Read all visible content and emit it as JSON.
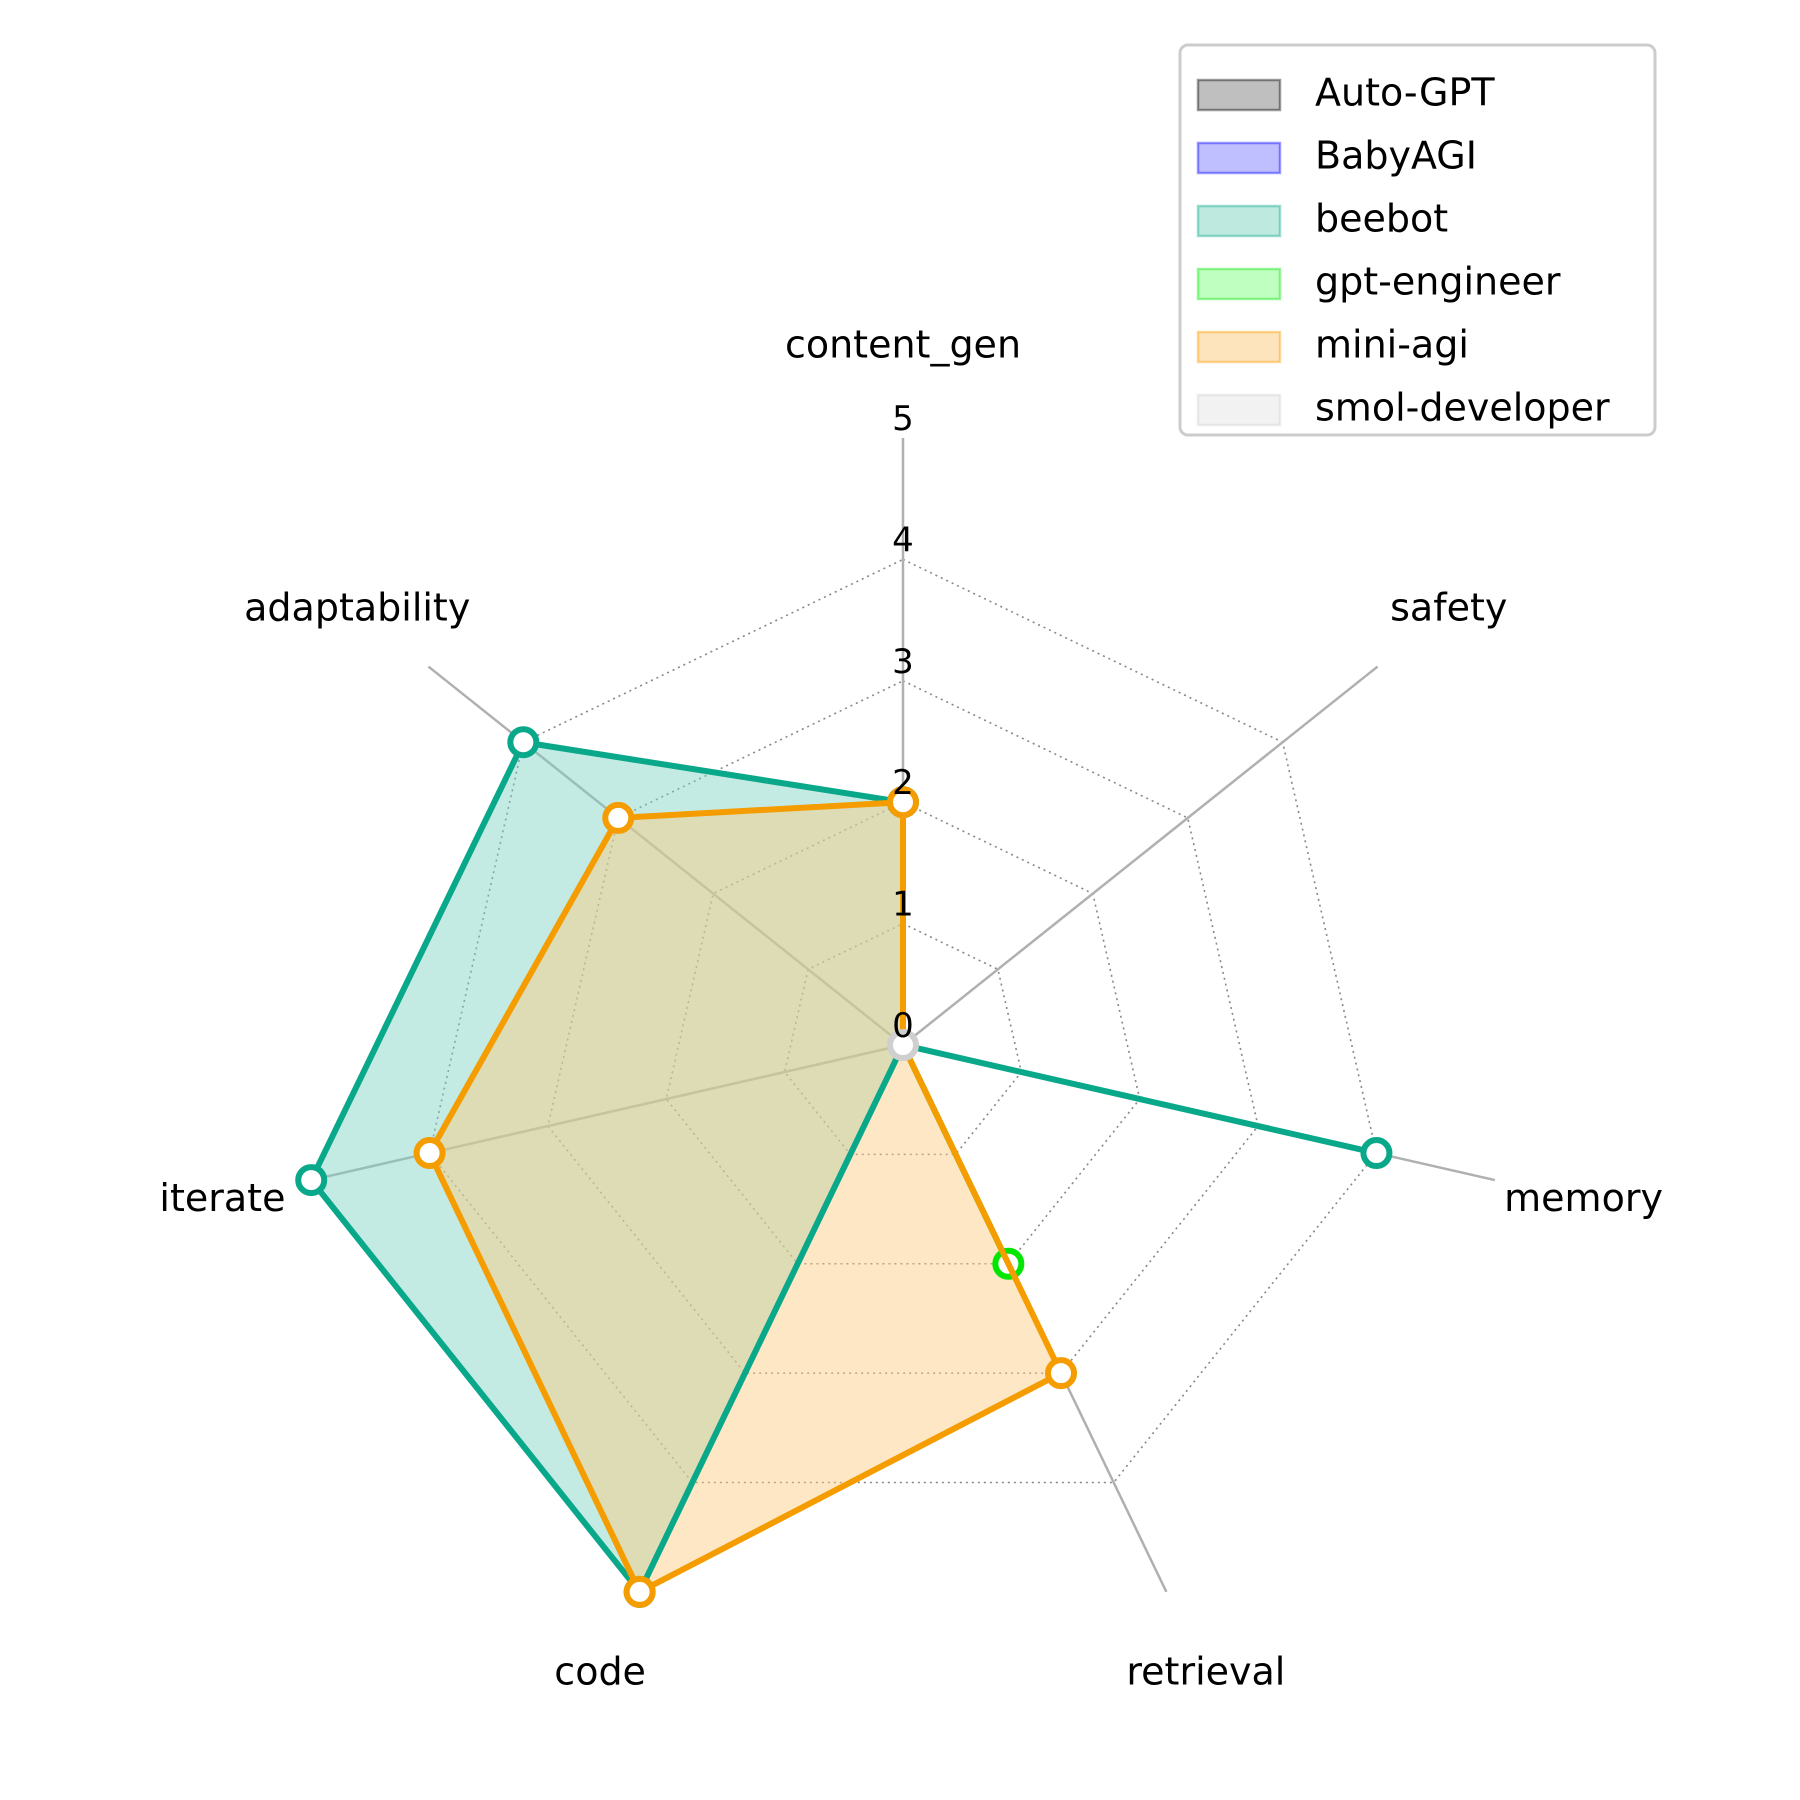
{
  "chart_data": {
    "type": "radar",
    "title": "",
    "axes": [
      "content_gen",
      "safety",
      "memory",
      "retrieval",
      "code",
      "iterate",
      "adaptability"
    ],
    "rlim": [
      0,
      5
    ],
    "ticks": [
      "0",
      "1",
      "2",
      "3",
      "4",
      "5"
    ],
    "grid": true,
    "legend_position": "top-right",
    "series": [
      {
        "name": "Auto-GPT",
        "values": [
          0,
          0,
          0,
          0,
          0,
          0,
          0
        ],
        "color": "#000000",
        "fill": "#808080"
      },
      {
        "name": "BabyAGI",
        "values": [
          0,
          0,
          0,
          0,
          0,
          0,
          0
        ],
        "color": "#0000ff",
        "fill": "#8080ff"
      },
      {
        "name": "beebot",
        "values": [
          2,
          0,
          4,
          0,
          5,
          5,
          4
        ],
        "color": "#0aa88a",
        "fill": "#7dd3c0"
      },
      {
        "name": "gpt-engineer",
        "values": [
          0,
          0,
          0,
          2,
          0,
          0,
          0
        ],
        "color": "#00e600",
        "fill": "#80ff80"
      },
      {
        "name": "mini-agi",
        "values": [
          2,
          0,
          0,
          3,
          5,
          4,
          3
        ],
        "color": "#f59c00",
        "fill": "#fdca7c"
      },
      {
        "name": "smol-developer",
        "values": [
          0,
          0,
          0,
          0,
          0,
          0,
          0
        ],
        "color": "#cfcfcf",
        "fill": "#e6e6e6"
      }
    ]
  }
}
